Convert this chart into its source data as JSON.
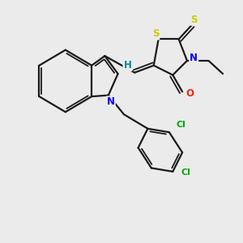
{
  "background_color": "#ebebeb",
  "bond_color": "#1a1a1a",
  "atom_colors": {
    "S": "#cccc00",
    "N": "#0000ff",
    "O": "#ff2200",
    "Cl": "#00aa00",
    "H": "#008b8b",
    "C": "#1a1a1a"
  },
  "lw": 1.6,
  "lw2": 1.3,
  "fs": 8.5
}
